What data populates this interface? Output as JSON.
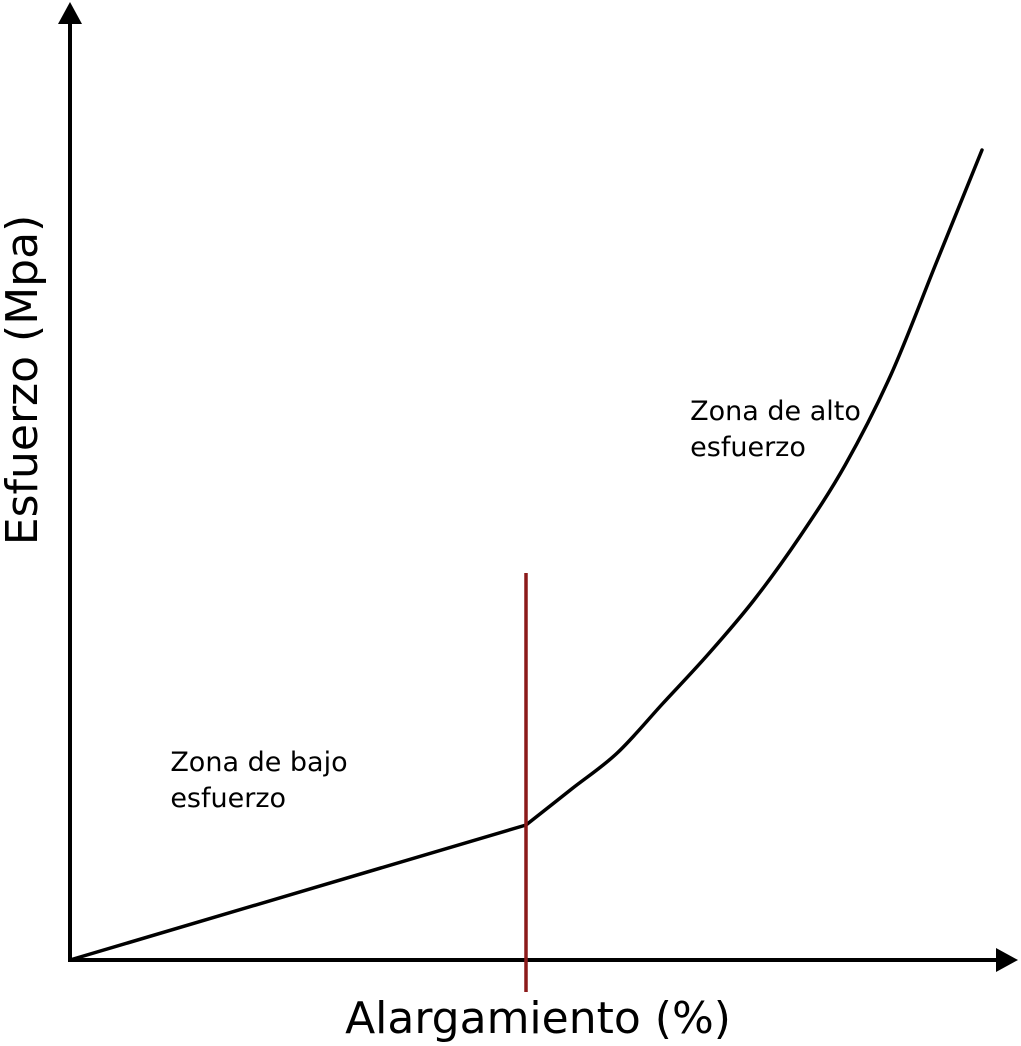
{
  "chart_data": {
    "type": "line",
    "title": "",
    "xlabel": "Alargamiento (%)",
    "ylabel": "Esfuerzo (Mpa)",
    "x_ticks": [],
    "y_ticks": [],
    "xlim": [
      0,
      100
    ],
    "ylim": [
      0,
      100
    ],
    "grid": false,
    "legend": "none",
    "series": [
      {
        "color": "#000000",
        "x": [
          0,
          50,
          55,
          60,
          65,
          70,
          75,
          80,
          85,
          90,
          95,
          100
        ],
        "y": [
          0,
          15,
          19,
          23,
          28.5,
          34,
          40,
          47,
          55,
          65,
          77.5,
          90
        ]
      }
    ],
    "threshold": {
      "x": 50,
      "y_top": 43,
      "color": "#8b1a1a"
    },
    "annotations": [
      {
        "lines": [
          "Zona de bajo",
          "esfuerzo"
        ],
        "x": 11,
        "y": 21
      },
      {
        "lines": [
          "Zona de alto",
          "esfuerzo"
        ],
        "x": 68,
        "y": 60
      }
    ]
  }
}
